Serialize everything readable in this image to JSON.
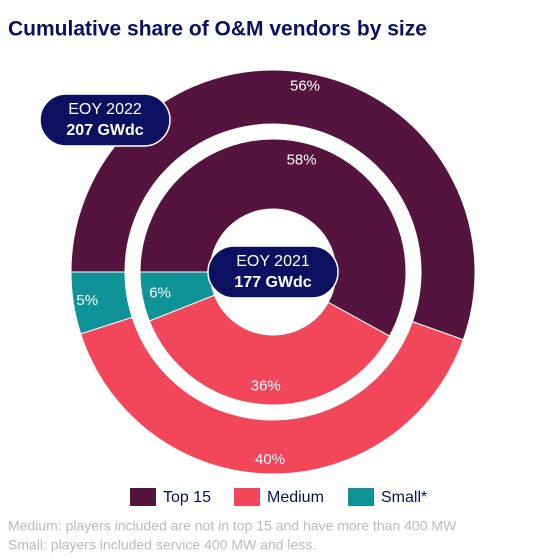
{
  "chart_data": {
    "type": "nested-donut",
    "title": "Cumulative share of O&M vendors by size",
    "categories": [
      "Top 15",
      "Medium",
      "Small*"
    ],
    "colors": [
      "#55143d",
      "#f2475a",
      "#0f9396"
    ],
    "rings": [
      {
        "name": "EOY 2022",
        "total": "207 GWdc",
        "values": [
          56,
          40,
          5
        ],
        "value_labels": [
          "56%",
          "40%",
          "5%"
        ]
      },
      {
        "name": "EOY 2021",
        "total": "177 GWdc",
        "values": [
          58,
          36,
          6
        ],
        "value_labels": [
          "58%",
          "36%",
          "6%"
        ]
      }
    ],
    "footnotes": [
      "Medium: players included are not in top 15 and have more than 400 MW",
      "Small: players included service 400 MW and less."
    ]
  }
}
